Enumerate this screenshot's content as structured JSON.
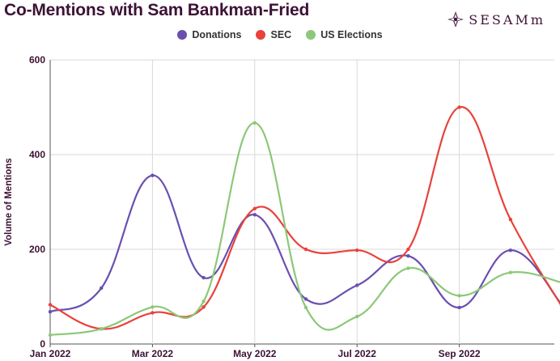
{
  "title": "Co-Mentions with Sam Bankman-Fried",
  "logo_text": "SESAMm",
  "chart_data": {
    "type": "line",
    "title": "Co-Mentions with Sam Bankman-Fried",
    "xlabel": "",
    "ylabel": "Volume of Mentions",
    "x": [
      "2022-01",
      "2022-02",
      "2022-03",
      "2022-04",
      "2022-05",
      "2022-06",
      "2022-07",
      "2022-08",
      "2022-09",
      "2022-10",
      "2022-11"
    ],
    "xticks": [
      "Jan 2022",
      "Mar 2022",
      "May 2022",
      "Jul 2022",
      "Sep 2022"
    ],
    "yticks": [
      0,
      200,
      400,
      600
    ],
    "ylim": [
      0,
      600
    ],
    "grid": true,
    "legend": "top-center",
    "series": [
      {
        "name": "Donations",
        "color": "#6a4fb0",
        "values": [
          68,
          118,
          356,
          140,
          273,
          95,
          124,
          186,
          77,
          198,
          84
        ]
      },
      {
        "name": "SEC",
        "color": "#e8423a",
        "values": [
          83,
          32,
          66,
          78,
          286,
          200,
          198,
          200,
          500,
          263,
          80
        ]
      },
      {
        "name": "US Elections",
        "color": "#8cc878",
        "values": [
          19,
          32,
          78,
          90,
          467,
          77,
          58,
          160,
          102,
          151,
          130
        ]
      }
    ]
  }
}
